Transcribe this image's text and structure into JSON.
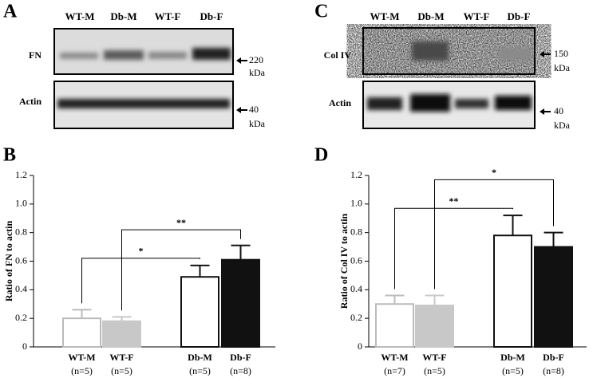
{
  "panels": {
    "A": {
      "letter": "A",
      "lanes": [
        "WT-M",
        "Db-M",
        "WT-F",
        "Db-F"
      ],
      "blots": [
        {
          "protein": "FN",
          "marker": "220",
          "unit": "kDa"
        },
        {
          "protein": "Actin",
          "marker": "40",
          "unit": "kDa"
        }
      ]
    },
    "C": {
      "letter": "C",
      "lanes": [
        "WT-M",
        "Db-M",
        "WT-F",
        "Db-F"
      ],
      "blots": [
        {
          "protein": "Col IV",
          "marker": "150",
          "unit": "kDa"
        },
        {
          "protein": "Actin",
          "marker": "40",
          "unit": "kDa"
        }
      ]
    }
  },
  "chart_data": [
    {
      "type": "bar",
      "letter": "B",
      "ylabel": "Ratio of FN to actin",
      "categories": [
        "WT-M",
        "WT-F",
        "Db-M",
        "Db-F"
      ],
      "n_labels": [
        "(n=5)",
        "(n=5)",
        "(n=5)",
        "(n=8)"
      ],
      "values": [
        0.2,
        0.18,
        0.49,
        0.61
      ],
      "errors": [
        0.06,
        0.03,
        0.08,
        0.1
      ],
      "colors": [
        "#ffffff",
        "#c8c8c8",
        "#ffffff",
        "#111111"
      ],
      "edge_colors": [
        "#bbbbbb",
        "#c8c8c8",
        "#111111",
        "#111111"
      ],
      "ylim": [
        0,
        1.2
      ],
      "yticks": [
        0,
        0.2,
        0.4,
        0.6,
        0.8,
        {
          "value": 1,
          "label": "1.0"
        },
        1.2
      ],
      "annotations": [
        {
          "label": "*"
        },
        {
          "label": "**"
        }
      ]
    },
    {
      "type": "bar",
      "letter": "D",
      "ylabel": "Ratio of Col IV to actin",
      "categories": [
        "WT-M",
        "WT-F",
        "Db-M",
        "Db-F"
      ],
      "n_labels": [
        "(n=7)",
        "(n=5)",
        "(n=5)",
        "(n=8)"
      ],
      "values": [
        0.3,
        0.29,
        0.78,
        0.7
      ],
      "errors": [
        0.06,
        0.07,
        0.14,
        0.1
      ],
      "colors": [
        "#ffffff",
        "#c8c8c8",
        "#ffffff",
        "#111111"
      ],
      "edge_colors": [
        "#bbbbbb",
        "#c8c8c8",
        "#111111",
        "#111111"
      ],
      "ylim": [
        0,
        1.2
      ],
      "yticks": [
        0,
        0.2,
        0.4,
        0.6,
        0.8,
        {
          "value": 1,
          "label": "1.0"
        },
        1.2
      ],
      "annotations": [
        {
          "label": "**"
        },
        {
          "label": "*"
        }
      ]
    }
  ]
}
